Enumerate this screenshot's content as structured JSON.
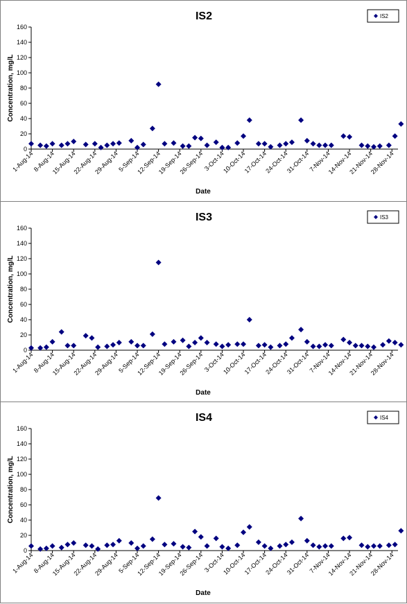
{
  "colors": {
    "marker": "#000080",
    "axis": "#000000",
    "border": "#808080"
  },
  "chart_data": [
    {
      "type": "scatter",
      "title": "IS2",
      "xlabel": "Date",
      "ylabel": "Concentration, mg/L",
      "ylim": [
        0,
        160
      ],
      "yticks": [
        "0",
        "20",
        "40",
        "60",
        "80",
        "100",
        "120",
        "140",
        "160"
      ],
      "xlim": [
        "2014-08-01",
        "2014-11-30"
      ],
      "xticks": [
        "1-Aug-14",
        "8-Aug-14",
        "15-Aug-14",
        "22-Aug-14",
        "29-Aug-14",
        "5-Sep-14",
        "12-Sep-14",
        "19-Sep-14",
        "26-Sep-14",
        "3-Oct-14",
        "10-Oct-14",
        "17-Oct-14",
        "24-Oct-14",
        "31-Oct-14",
        "7-Nov-14",
        "14-Nov-14",
        "21-Nov-14",
        "28-Nov-14"
      ],
      "legend": "top-right",
      "grid": false,
      "series": [
        {
          "name": "IS2",
          "points": [
            [
              "2014-08-01",
              7
            ],
            [
              "2014-08-04",
              5
            ],
            [
              "2014-08-06",
              4
            ],
            [
              "2014-08-08",
              7
            ],
            [
              "2014-08-11",
              5
            ],
            [
              "2014-08-13",
              7
            ],
            [
              "2014-08-15",
              10
            ],
            [
              "2014-08-19",
              6
            ],
            [
              "2014-08-22",
              7
            ],
            [
              "2014-08-24",
              2
            ],
            [
              "2014-08-26",
              5
            ],
            [
              "2014-08-28",
              7
            ],
            [
              "2014-08-30",
              8
            ],
            [
              "2014-09-03",
              11
            ],
            [
              "2014-09-05",
              2
            ],
            [
              "2014-09-07",
              6
            ],
            [
              "2014-09-10",
              27
            ],
            [
              "2014-09-12",
              85
            ],
            [
              "2014-09-14",
              7
            ],
            [
              "2014-09-17",
              8
            ],
            [
              "2014-09-20",
              4
            ],
            [
              "2014-09-22",
              4
            ],
            [
              "2014-09-24",
              15
            ],
            [
              "2014-09-26",
              14
            ],
            [
              "2014-09-28",
              5
            ],
            [
              "2014-10-01",
              9
            ],
            [
              "2014-10-03",
              2
            ],
            [
              "2014-10-05",
              2
            ],
            [
              "2014-10-08",
              8
            ],
            [
              "2014-10-10",
              17
            ],
            [
              "2014-10-12",
              38
            ],
            [
              "2014-10-15",
              7
            ],
            [
              "2014-10-17",
              7
            ],
            [
              "2014-10-19",
              3
            ],
            [
              "2014-10-22",
              5
            ],
            [
              "2014-10-24",
              7
            ],
            [
              "2014-10-26",
              9
            ],
            [
              "2014-10-29",
              38
            ],
            [
              "2014-10-31",
              11
            ],
            [
              "2014-11-02",
              7
            ],
            [
              "2014-11-04",
              5
            ],
            [
              "2014-11-06",
              5
            ],
            [
              "2014-11-08",
              5
            ],
            [
              "2014-11-12",
              17
            ],
            [
              "2014-11-14",
              16
            ],
            [
              "2014-11-18",
              5
            ],
            [
              "2014-11-20",
              4
            ],
            [
              "2014-11-22",
              3
            ],
            [
              "2014-11-24",
              4
            ],
            [
              "2014-11-27",
              5
            ],
            [
              "2014-11-29",
              17
            ],
            [
              "2014-12-01",
              33
            ]
          ]
        }
      ]
    },
    {
      "type": "scatter",
      "title": "IS3",
      "xlabel": "Date",
      "ylabel": "Concentration, mg/L",
      "ylim": [
        0,
        160
      ],
      "yticks": [
        "0",
        "20",
        "40",
        "60",
        "80",
        "100",
        "120",
        "140",
        "160"
      ],
      "xlim": [
        "2014-08-01",
        "2014-11-30"
      ],
      "xticks": [
        "1-Aug-14",
        "8-Aug-14",
        "15-Aug-14",
        "22-Aug-14",
        "29-Aug-14",
        "5-Sep-14",
        "12-Sep-14",
        "19-Sep-14",
        "26-Sep-14",
        "3-Oct-14",
        "10-Oct-14",
        "17-Oct-14",
        "24-Oct-14",
        "31-Oct-14",
        "7-Nov-14",
        "14-Nov-14",
        "21-Nov-14",
        "28-Nov-14"
      ],
      "legend": "top-right",
      "grid": false,
      "series": [
        {
          "name": "IS3",
          "points": [
            [
              "2014-08-01",
              3
            ],
            [
              "2014-08-04",
              3
            ],
            [
              "2014-08-06",
              4
            ],
            [
              "2014-08-08",
              11
            ],
            [
              "2014-08-11",
              24
            ],
            [
              "2014-08-13",
              6
            ],
            [
              "2014-08-15",
              6
            ],
            [
              "2014-08-19",
              19
            ],
            [
              "2014-08-21",
              16
            ],
            [
              "2014-08-23",
              4
            ],
            [
              "2014-08-26",
              5
            ],
            [
              "2014-08-28",
              7
            ],
            [
              "2014-08-30",
              10
            ],
            [
              "2014-09-03",
              11
            ],
            [
              "2014-09-05",
              6
            ],
            [
              "2014-09-07",
              6
            ],
            [
              "2014-09-10",
              21
            ],
            [
              "2014-09-12",
              115
            ],
            [
              "2014-09-14",
              8
            ],
            [
              "2014-09-17",
              11
            ],
            [
              "2014-09-20",
              13
            ],
            [
              "2014-09-22",
              5
            ],
            [
              "2014-09-24",
              10
            ],
            [
              "2014-09-26",
              16
            ],
            [
              "2014-09-28",
              10
            ],
            [
              "2014-10-01",
              8
            ],
            [
              "2014-10-03",
              5
            ],
            [
              "2014-10-05",
              7
            ],
            [
              "2014-10-08",
              8
            ],
            [
              "2014-10-10",
              8
            ],
            [
              "2014-10-12",
              40
            ],
            [
              "2014-10-15",
              6
            ],
            [
              "2014-10-17",
              7
            ],
            [
              "2014-10-19",
              4
            ],
            [
              "2014-10-22",
              6
            ],
            [
              "2014-10-24",
              8
            ],
            [
              "2014-10-26",
              16
            ],
            [
              "2014-10-29",
              27
            ],
            [
              "2014-10-31",
              11
            ],
            [
              "2014-11-02",
              5
            ],
            [
              "2014-11-04",
              5
            ],
            [
              "2014-11-06",
              7
            ],
            [
              "2014-11-08",
              6
            ],
            [
              "2014-11-12",
              14
            ],
            [
              "2014-11-14",
              10
            ],
            [
              "2014-11-16",
              6
            ],
            [
              "2014-11-18",
              6
            ],
            [
              "2014-11-20",
              5
            ],
            [
              "2014-11-22",
              4
            ],
            [
              "2014-11-25",
              7
            ],
            [
              "2014-11-27",
              12
            ],
            [
              "2014-11-29",
              10
            ],
            [
              "2014-12-01",
              7
            ]
          ]
        }
      ]
    },
    {
      "type": "scatter",
      "title": "IS4",
      "xlabel": "Date",
      "ylabel": "Concentration, mg/L",
      "ylim": [
        0,
        160
      ],
      "yticks": [
        "0",
        "20",
        "40",
        "60",
        "80",
        "100",
        "120",
        "140",
        "160"
      ],
      "xlim": [
        "2014-08-01",
        "2014-11-30"
      ],
      "xticks": [
        "1-Aug-14",
        "8-Aug-14",
        "15-Aug-14",
        "22-Aug-14",
        "29-Aug-14",
        "5-Sep-14",
        "12-Sep-14",
        "19-Sep-14",
        "26-Sep-14",
        "3-Oct-14",
        "10-Oct-14",
        "17-Oct-14",
        "24-Oct-14",
        "31-Oct-14",
        "7-Nov-14",
        "14-Nov-14",
        "21-Nov-14",
        "28-Nov-14"
      ],
      "legend": "top-right",
      "grid": false,
      "series": [
        {
          "name": "IS4",
          "points": [
            [
              "2014-08-01",
              6
            ],
            [
              "2014-08-04",
              2
            ],
            [
              "2014-08-06",
              3
            ],
            [
              "2014-08-08",
              6
            ],
            [
              "2014-08-11",
              4
            ],
            [
              "2014-08-13",
              8
            ],
            [
              "2014-08-15",
              10
            ],
            [
              "2014-08-19",
              7
            ],
            [
              "2014-08-21",
              6
            ],
            [
              "2014-08-23",
              2
            ],
            [
              "2014-08-26",
              7
            ],
            [
              "2014-08-28",
              8
            ],
            [
              "2014-08-30",
              13
            ],
            [
              "2014-09-03",
              10
            ],
            [
              "2014-09-05",
              3
            ],
            [
              "2014-09-07",
              6
            ],
            [
              "2014-09-10",
              15
            ],
            [
              "2014-09-12",
              69
            ],
            [
              "2014-09-14",
              8
            ],
            [
              "2014-09-17",
              9
            ],
            [
              "2014-09-20",
              5
            ],
            [
              "2014-09-22",
              4
            ],
            [
              "2014-09-24",
              25
            ],
            [
              "2014-09-26",
              18
            ],
            [
              "2014-09-28",
              6
            ],
            [
              "2014-10-01",
              16
            ],
            [
              "2014-10-03",
              5
            ],
            [
              "2014-10-05",
              3
            ],
            [
              "2014-10-08",
              7
            ],
            [
              "2014-10-10",
              24
            ],
            [
              "2014-10-12",
              31
            ],
            [
              "2014-10-15",
              11
            ],
            [
              "2014-10-17",
              6
            ],
            [
              "2014-10-19",
              3
            ],
            [
              "2014-10-22",
              6
            ],
            [
              "2014-10-24",
              8
            ],
            [
              "2014-10-26",
              11
            ],
            [
              "2014-10-29",
              42
            ],
            [
              "2014-10-31",
              13
            ],
            [
              "2014-11-02",
              7
            ],
            [
              "2014-11-04",
              5
            ],
            [
              "2014-11-06",
              6
            ],
            [
              "2014-11-08",
              6
            ],
            [
              "2014-11-12",
              16
            ],
            [
              "2014-11-14",
              17
            ],
            [
              "2014-11-18",
              7
            ],
            [
              "2014-11-20",
              5
            ],
            [
              "2014-11-22",
              6
            ],
            [
              "2014-11-24",
              6
            ],
            [
              "2014-11-27",
              7
            ],
            [
              "2014-11-29",
              8
            ],
            [
              "2014-12-01",
              26
            ]
          ]
        }
      ]
    }
  ]
}
